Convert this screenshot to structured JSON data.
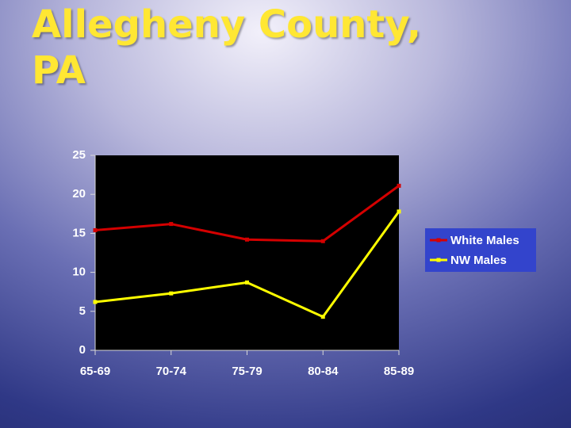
{
  "chart_data": {
    "type": "line",
    "title": "Allegheny County, PA",
    "categories": [
      "65-69",
      "70-74",
      "75-79",
      "80-84",
      "85-89"
    ],
    "series": [
      {
        "name": "White Males",
        "color": "#d40000",
        "values": [
          15.4,
          16.2,
          14.2,
          14.0,
          21.1
        ]
      },
      {
        "name": "NW Males",
        "color": "#ffff00",
        "values": [
          6.2,
          7.3,
          8.7,
          4.3,
          17.8
        ]
      }
    ],
    "ylim": [
      0,
      25
    ],
    "yticks": [
      0,
      5,
      10,
      15,
      20,
      25
    ],
    "grid": false,
    "legend": "right"
  }
}
